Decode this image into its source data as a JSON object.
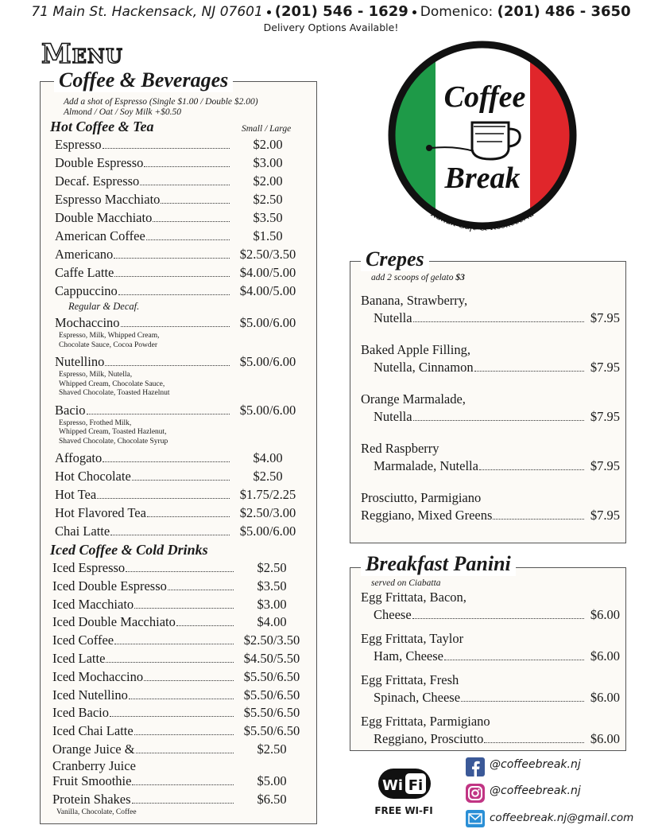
{
  "header": {
    "address": "71 Main St. Hackensack, NJ 07601",
    "phone": "(201) 546 - 1629",
    "contact_label": "Domenico:",
    "contact_phone": "(201) 486 - 3650",
    "delivery": "Delivery Options Available!"
  },
  "menu_title": "Menu",
  "coffee": {
    "title": "Coffee & Beverages",
    "notes": [
      "Add a shot of Espresso (Single $1.00 / Double $2.00)",
      "Almond / Oat / Soy Milk +$0.50"
    ],
    "hot": {
      "title": "Hot Coffee & Tea",
      "size_label": "Small / Large",
      "items": [
        {
          "name": "Espresso",
          "price": "$2.00"
        },
        {
          "name": "Double Espresso",
          "price": "$3.00"
        },
        {
          "name": "Decaf. Espresso",
          "price": "$2.00"
        },
        {
          "name": "Espresso Macchiato",
          "price": "$2.50"
        },
        {
          "name": "Double Macchiato",
          "price": "$3.50"
        },
        {
          "name": "American Coffee",
          "price": "$1.50"
        },
        {
          "name": "Americano",
          "price": "$2.50/3.50"
        },
        {
          "name": "Caffe Latte",
          "price": "$4.00/5.00"
        },
        {
          "name": "Cappuccino",
          "price": "$4.00/5.00",
          "note": "Regular & Decaf."
        },
        {
          "name": "Mochaccino",
          "price": "$5.00/6.00",
          "desc": [
            "Espresso, Milk, Whipped Cream,",
            "Chocolate Sauce, Cocoa Powder"
          ]
        },
        {
          "name": "Nutellino",
          "price": "$5.00/6.00",
          "desc": [
            "Espresso, Milk, Nutella,",
            "Whipped Cream, Chocolate Sauce,",
            "Shaved Chocolate, Toasted Hazelnut"
          ]
        },
        {
          "name": "Bacio",
          "price": "$5.00/6.00",
          "desc": [
            "Espresso, Frothed Milk,",
            "Whipped Cream, Toasted Hazlenut,",
            "Shaved Chocolate, Chocolate Syrup"
          ]
        },
        {
          "name": "Affogato",
          "price": "$4.00"
        },
        {
          "name": "Hot Chocolate",
          "price": "$2.50"
        },
        {
          "name": "Hot Tea",
          "price": "$1.75/2.25"
        },
        {
          "name": "Hot Flavored Tea",
          "price": "$2.50/3.00"
        },
        {
          "name": "Chai Latte",
          "price": "$5.00/6.00"
        }
      ]
    },
    "iced": {
      "title": "Iced Coffee & Cold Drinks",
      "items": [
        {
          "name": "Iced Espresso",
          "price": "$2.50"
        },
        {
          "name": "Iced Double Espresso",
          "price": "$3.50"
        },
        {
          "name": "Iced Macchiato",
          "price": "$3.00"
        },
        {
          "name": "Iced Double Macchiato",
          "price": "$4.00"
        },
        {
          "name": "Iced Coffee",
          "price": "$2.50/3.50"
        },
        {
          "name": "Iced Latte",
          "price": "$4.50/5.50"
        },
        {
          "name": "Iced Mochaccino",
          "price": "$5.50/6.50"
        },
        {
          "name": "Iced Nutellino",
          "price": "$5.50/6.50"
        },
        {
          "name": "Iced Bacio",
          "price": "$5.50/6.50"
        },
        {
          "name": "Iced Chai Latte",
          "price": "$5.50/6.50"
        },
        {
          "name": "Orange Juice &",
          "name_cont": "Cranberry Juice",
          "price": "$2.50"
        },
        {
          "name": "Fruit Smoothie",
          "price": "$5.00"
        },
        {
          "name": "Protein  Shakes",
          "price": "$6.50",
          "desc": [
            "Vanilla, Chocolate, Coffee"
          ]
        }
      ]
    }
  },
  "logo": {
    "word1": "Coffee",
    "word2": "Break",
    "tagline": "Italian Café & Rosticceria"
  },
  "crepes": {
    "title": "Crepes",
    "note": "add 2 scoops of gelato",
    "note_price": "$3",
    "items": [
      {
        "lines": [
          "Banana, Strawberry,",
          "Nutella"
        ],
        "price": "$7.95"
      },
      {
        "lines": [
          "Baked Apple Filling,",
          "Nutella, Cinnamon"
        ],
        "price": "$7.95"
      },
      {
        "lines": [
          "Orange Marmalade,",
          "Nutella"
        ],
        "price": "$7.95"
      },
      {
        "lines": [
          "Red Raspberry",
          "Marmalade, Nutella"
        ],
        "price": "$7.95"
      },
      {
        "lines": [
          "Prosciutto, Parmigiano",
          "Reggiano, Mixed Greens"
        ],
        "price": "$7.95"
      }
    ]
  },
  "panini": {
    "title": "Breakfast Panini",
    "note": "served on Ciabatta",
    "items": [
      {
        "lines": [
          "Egg Frittata, Bacon,",
          "Cheese"
        ],
        "price": "$6.00"
      },
      {
        "lines": [
          "Egg Frittata, Taylor",
          "Ham, Cheese"
        ],
        "price": "$6.00"
      },
      {
        "lines": [
          "Egg Frittata, Fresh",
          "Spinach, Cheese"
        ],
        "price": "$6.00"
      },
      {
        "lines": [
          "Egg Frittata, Parmigiano",
          "Reggiano, Prosciutto"
        ],
        "price": "$6.00"
      }
    ]
  },
  "wifi": {
    "wi": "Wi",
    "fi": "Fi",
    "label": "FREE WI-FI"
  },
  "social": {
    "facebook": "@coffeebreak.nj",
    "instagram": "@coffeebreak.nj",
    "email": "coffeebreak.nj@gmail.com"
  }
}
